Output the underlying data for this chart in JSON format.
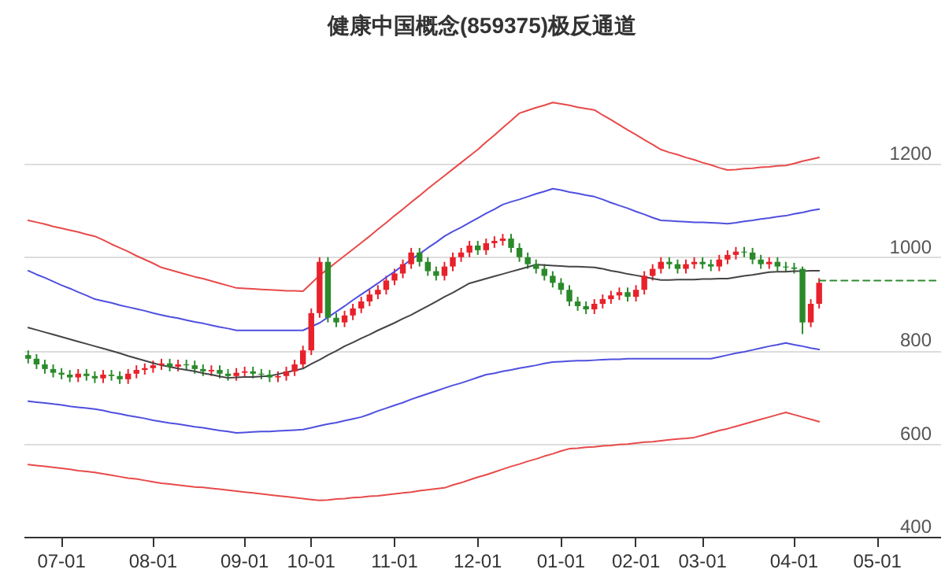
{
  "chart_data": {
    "type": "candlestick",
    "title": "健康中国概念(859375)极反通道",
    "categories": [
      null,
      null,
      null,
      null,
      "07-01",
      null,
      null,
      null,
      null,
      null,
      null,
      null,
      null,
      null,
      null,
      "08-01",
      null,
      null,
      null,
      null,
      null,
      null,
      null,
      null,
      null,
      null,
      "09-01",
      null,
      null,
      null,
      null,
      null,
      null,
      null,
      "10-01",
      null,
      null,
      null,
      null,
      null,
      null,
      null,
      null,
      null,
      "11-01",
      null,
      null,
      null,
      null,
      null,
      null,
      null,
      null,
      null,
      "12-01",
      null,
      null,
      null,
      null,
      null,
      null,
      null,
      null,
      null,
      "01-01",
      null,
      null,
      null,
      null,
      null,
      null,
      null,
      null,
      "02-01",
      null,
      null,
      null,
      null,
      null,
      null,
      null,
      "03-01",
      null,
      null,
      null,
      null,
      null,
      null,
      null,
      null,
      null,
      null,
      "04-01",
      null,
      null,
      null,
      null,
      null,
      null,
      null,
      null,
      null,
      "05-01",
      null,
      null,
      null,
      null,
      null,
      null,
      null
    ],
    "ohlc": [
      [
        790,
        800,
        772,
        782
      ],
      [
        782,
        792,
        760,
        770
      ],
      [
        770,
        780,
        750,
        760
      ],
      [
        760,
        770,
        742,
        752
      ],
      [
        752,
        762,
        738,
        748
      ],
      [
        748,
        758,
        732,
        742
      ],
      [
        742,
        760,
        732,
        750
      ],
      [
        750,
        760,
        735,
        745
      ],
      [
        745,
        755,
        730,
        740
      ],
      [
        740,
        758,
        730,
        748
      ],
      [
        748,
        758,
        735,
        745
      ],
      [
        745,
        755,
        728,
        738
      ],
      [
        738,
        760,
        728,
        750
      ],
      [
        750,
        768,
        740,
        758
      ],
      [
        758,
        772,
        748,
        762
      ],
      [
        762,
        778,
        752,
        768
      ],
      [
        768,
        782,
        758,
        772
      ],
      [
        772,
        782,
        755,
        765
      ],
      [
        765,
        780,
        755,
        770
      ],
      [
        770,
        780,
        758,
        768
      ],
      [
        768,
        778,
        750,
        760
      ],
      [
        760,
        770,
        745,
        755
      ],
      [
        755,
        768,
        745,
        758
      ],
      [
        758,
        768,
        740,
        750
      ],
      [
        750,
        760,
        735,
        745
      ],
      [
        745,
        762,
        735,
        752
      ],
      [
        752,
        765,
        742,
        755
      ],
      [
        755,
        765,
        740,
        750
      ],
      [
        750,
        760,
        738,
        748
      ],
      [
        748,
        758,
        732,
        742
      ],
      [
        742,
        755,
        732,
        745
      ],
      [
        745,
        765,
        735,
        755
      ],
      [
        755,
        780,
        745,
        770
      ],
      [
        770,
        810,
        760,
        800
      ],
      [
        800,
        890,
        790,
        880
      ],
      [
        880,
        1000,
        870,
        990
      ],
      [
        990,
        1000,
        860,
        870
      ],
      [
        870,
        880,
        850,
        860
      ],
      [
        860,
        885,
        850,
        875
      ],
      [
        875,
        900,
        865,
        890
      ],
      [
        890,
        915,
        880,
        905
      ],
      [
        905,
        930,
        895,
        920
      ],
      [
        920,
        940,
        910,
        930
      ],
      [
        930,
        960,
        920,
        950
      ],
      [
        950,
        975,
        940,
        965
      ],
      [
        965,
        995,
        955,
        985
      ],
      [
        985,
        1020,
        975,
        1010
      ],
      [
        1010,
        1020,
        980,
        990
      ],
      [
        990,
        1000,
        960,
        970
      ],
      [
        970,
        980,
        950,
        960
      ],
      [
        960,
        990,
        950,
        980
      ],
      [
        980,
        1010,
        970,
        1000
      ],
      [
        1000,
        1020,
        990,
        1010
      ],
      [
        1010,
        1035,
        1000,
        1025
      ],
      [
        1025,
        1035,
        1005,
        1015
      ],
      [
        1015,
        1040,
        1005,
        1030
      ],
      [
        1030,
        1045,
        1020,
        1035
      ],
      [
        1035,
        1050,
        1025,
        1040
      ],
      [
        1040,
        1050,
        1010,
        1020
      ],
      [
        1020,
        1030,
        990,
        1000
      ],
      [
        1000,
        1010,
        975,
        985
      ],
      [
        985,
        995,
        965,
        975
      ],
      [
        975,
        985,
        950,
        960
      ],
      [
        960,
        970,
        935,
        945
      ],
      [
        945,
        955,
        920,
        930
      ],
      [
        930,
        940,
        895,
        905
      ],
      [
        905,
        915,
        885,
        895
      ],
      [
        895,
        905,
        878,
        888
      ],
      [
        888,
        910,
        878,
        900
      ],
      [
        900,
        920,
        890,
        910
      ],
      [
        910,
        928,
        900,
        918
      ],
      [
        918,
        935,
        908,
        925
      ],
      [
        925,
        935,
        905,
        915
      ],
      [
        915,
        940,
        905,
        930
      ],
      [
        930,
        970,
        920,
        960
      ],
      [
        960,
        985,
        950,
        975
      ],
      [
        975,
        1000,
        965,
        990
      ],
      [
        990,
        1000,
        975,
        985
      ],
      [
        985,
        995,
        965,
        975
      ],
      [
        975,
        995,
        965,
        985
      ],
      [
        985,
        1000,
        975,
        990
      ],
      [
        990,
        1000,
        975,
        985
      ],
      [
        985,
        995,
        970,
        980
      ],
      [
        980,
        1005,
        970,
        995
      ],
      [
        995,
        1015,
        985,
        1005
      ],
      [
        1005,
        1022,
        995,
        1012
      ],
      [
        1012,
        1022,
        1000,
        1010
      ],
      [
        1010,
        1020,
        985,
        995
      ],
      [
        995,
        1005,
        975,
        985
      ],
      [
        985,
        1000,
        975,
        990
      ],
      [
        990,
        1000,
        970,
        980
      ],
      [
        980,
        990,
        968,
        978
      ],
      [
        978,
        988,
        965,
        975
      ],
      [
        975,
        980,
        835,
        860
      ],
      [
        860,
        910,
        850,
        900
      ],
      [
        900,
        955,
        890,
        945
      ],
      null,
      null,
      null,
      null,
      null,
      null,
      null,
      null,
      null,
      null,
      null,
      null,
      null,
      null
    ],
    "colors": [
      "#2a8a2a",
      "#2a8a2a",
      "#2a8a2a",
      "#2a8a2a",
      "#2a8a2a",
      "#2a8a2a",
      "#e8212b",
      "#2a8a2a",
      "#2a8a2a",
      "#e8212b",
      "#2a8a2a",
      "#2a8a2a",
      "#e8212b",
      "#e8212b",
      "#e8212b",
      "#e8212b",
      "#e8212b",
      "#2a8a2a",
      "#e8212b",
      "#2a8a2a",
      "#2a8a2a",
      "#2a8a2a",
      "#e8212b",
      "#2a8a2a",
      "#2a8a2a",
      "#e8212b",
      "#e8212b",
      "#2a8a2a",
      "#2a8a2a",
      "#2a8a2a",
      "#e8212b",
      "#e8212b",
      "#e8212b",
      "#e8212b",
      "#e8212b",
      "#e8212b",
      "#2a8a2a",
      "#2a8a2a",
      "#e8212b",
      "#e8212b",
      "#e8212b",
      "#e8212b",
      "#e8212b",
      "#e8212b",
      "#e8212b",
      "#e8212b",
      "#e8212b",
      "#2a8a2a",
      "#2a8a2a",
      "#2a8a2a",
      "#e8212b",
      "#e8212b",
      "#e8212b",
      "#e8212b",
      "#2a8a2a",
      "#e8212b",
      "#e8212b",
      "#e8212b",
      "#2a8a2a",
      "#2a8a2a",
      "#2a8a2a",
      "#2a8a2a",
      "#2a8a2a",
      "#2a8a2a",
      "#2a8a2a",
      "#2a8a2a",
      "#2a8a2a",
      "#2a8a2a",
      "#e8212b",
      "#e8212b",
      "#e8212b",
      "#e8212b",
      "#2a8a2a",
      "#e8212b",
      "#e8212b",
      "#e8212b",
      "#e8212b",
      "#2a8a2a",
      "#2a8a2a",
      "#e8212b",
      "#e8212b",
      "#2a8a2a",
      "#2a8a2a",
      "#e8212b",
      "#e8212b",
      "#e8212b",
      "#2a8a2a",
      "#2a8a2a",
      "#2a8a2a",
      "#e8212b",
      "#2a8a2a",
      "#2a8a2a",
      "#2a8a2a",
      "#2a8a2a",
      "#e8212b",
      "#e8212b",
      null,
      null,
      null,
      null,
      null,
      null,
      null,
      null,
      null,
      null,
      null,
      null,
      null,
      null
    ],
    "series": [
      {
        "type": "line",
        "color": "#e84a4a",
        "values": [
          1079,
          1075,
          1071,
          1066,
          1062,
          1058,
          1054,
          1049,
          1045,
          1037,
          1028,
          1020,
          1012,
          1003,
          995,
          987,
          978,
          973,
          968,
          963,
          958,
          954,
          949,
          944,
          939,
          934,
          933,
          932,
          931,
          930,
          929,
          928,
          928,
          927,
          944,
          961,
          975,
          989,
          1003,
          1017,
          1031,
          1045,
          1060,
          1074,
          1089,
          1103,
          1118,
          1132,
          1147,
          1161,
          1175,
          1189,
          1203,
          1217,
          1231,
          1247,
          1262,
          1278,
          1293,
          1309,
          1315,
          1321,
          1326,
          1332,
          1329,
          1326,
          1322,
          1319,
          1316,
          1305,
          1295,
          1284,
          1273,
          1263,
          1252,
          1242,
          1231,
          1225,
          1220,
          1214,
          1209,
          1203,
          1198,
          1192,
          1187,
          1188,
          1190,
          1191,
          1193,
          1194,
          1196,
          1197,
          1201,
          1206,
          1210,
          1214,
          null,
          null,
          null,
          null,
          null,
          null,
          null,
          null,
          null,
          null,
          null,
          null,
          null,
          null
        ]
      },
      {
        "type": "line",
        "color": "#4f4fe0",
        "values": [
          971,
          963,
          956,
          948,
          940,
          933,
          925,
          918,
          910,
          906,
          902,
          897,
          893,
          889,
          885,
          880,
          876,
          872,
          869,
          865,
          861,
          858,
          854,
          850,
          847,
          843,
          843,
          843,
          843,
          843,
          843,
          843,
          843,
          843,
          851,
          859,
          871,
          883,
          895,
          908,
          920,
          932,
          944,
          957,
          969,
          982,
          995,
          1007,
          1020,
          1032,
          1045,
          1055,
          1064,
          1074,
          1084,
          1094,
          1103,
          1113,
          1119,
          1124,
          1130,
          1136,
          1141,
          1147,
          1144,
          1140,
          1137,
          1133,
          1130,
          1124,
          1117,
          1111,
          1105,
          1098,
          1092,
          1085,
          1079,
          1078,
          1077,
          1076,
          1075,
          1075,
          1074,
          1073,
          1072,
          1074,
          1077,
          1079,
          1082,
          1084,
          1087,
          1089,
          1093,
          1096,
          1100,
          1103,
          null,
          null,
          null,
          null,
          null,
          null,
          null,
          null,
          null,
          null,
          null,
          null,
          null,
          null
        ]
      },
      {
        "type": "line",
        "color": "#444444",
        "values": [
          849,
          844,
          839,
          834,
          829,
          824,
          819,
          814,
          809,
          804,
          799,
          794,
          788,
          783,
          778,
          773,
          768,
          765,
          761,
          758,
          755,
          751,
          748,
          744,
          741,
          742,
          743,
          743,
          744,
          745,
          749,
          753,
          757,
          761,
          771,
          780,
          790,
          799,
          809,
          817,
          826,
          834,
          843,
          851,
          859,
          868,
          876,
          886,
          895,
          905,
          915,
          924,
          934,
          944,
          949,
          954,
          959,
          964,
          969,
          974,
          979,
          984,
          983,
          982,
          981,
          980,
          980,
          979,
          978,
          975,
          971,
          968,
          964,
          961,
          958,
          954,
          951,
          951,
          952,
          952,
          952,
          953,
          953,
          954,
          954,
          957,
          960,
          962,
          965,
          968,
          969,
          969,
          970,
          970,
          971,
          971,
          null,
          null,
          null,
          null,
          null,
          null,
          null,
          null,
          null,
          null,
          null,
          null,
          null,
          null
        ]
      },
      {
        "type": "line",
        "color": "#4f4fe0",
        "values": [
          691,
          689,
          687,
          685,
          683,
          680,
          678,
          676,
          674,
          671,
          667,
          664,
          660,
          657,
          654,
          650,
          647,
          644,
          642,
          639,
          636,
          634,
          631,
          628,
          626,
          623,
          624,
          625,
          626,
          626,
          627,
          628,
          629,
          630,
          634,
          638,
          642,
          645,
          649,
          653,
          657,
          663,
          670,
          676,
          682,
          688,
          695,
          701,
          707,
          713,
          719,
          725,
          730,
          736,
          742,
          748,
          751,
          755,
          758,
          762,
          765,
          768,
          772,
          775,
          776,
          777,
          778,
          778,
          779,
          780,
          781,
          781,
          782,
          782,
          782,
          782,
          782,
          782,
          782,
          782,
          782,
          782,
          782,
          786,
          790,
          794,
          797,
          801,
          805,
          809,
          812,
          816,
          812,
          809,
          805,
          802,
          null,
          null,
          null,
          null,
          null,
          null,
          null,
          null,
          null,
          null,
          null,
          null,
          null,
          null
        ]
      },
      {
        "type": "line",
        "color": "#e84a4a",
        "values": [
          555,
          553,
          551,
          549,
          547,
          545,
          542,
          540,
          538,
          535,
          532,
          529,
          526,
          524,
          521,
          518,
          515,
          513,
          511,
          509,
          507,
          506,
          504,
          502,
          500,
          498,
          496,
          494,
          492,
          490,
          488,
          486,
          484,
          482,
          480,
          478,
          479,
          481,
          482,
          484,
          485,
          487,
          488,
          490,
          492,
          494,
          496,
          499,
          501,
          503,
          505,
          511,
          516,
          522,
          528,
          533,
          539,
          545,
          551,
          556,
          562,
          567,
          573,
          578,
          584,
          589,
          590,
          592,
          593,
          595,
          596,
          598,
          599,
          601,
          603,
          604,
          606,
          608,
          610,
          611,
          613,
          618,
          623,
          628,
          632,
          637,
          642,
          647,
          652,
          657,
          662,
          667,
          662,
          657,
          652,
          647,
          null,
          null,
          null,
          null,
          null,
          null,
          null,
          null,
          null,
          null,
          null,
          null,
          null,
          null
        ]
      },
      {
        "type": "line",
        "color": "#2e8b2e",
        "line_style": "dashed",
        "values": [
          null,
          null,
          null,
          null,
          null,
          null,
          null,
          null,
          null,
          null,
          null,
          null,
          null,
          null,
          null,
          null,
          null,
          null,
          null,
          null,
          null,
          null,
          null,
          null,
          null,
          null,
          null,
          null,
          null,
          null,
          null,
          null,
          null,
          null,
          null,
          null,
          null,
          null,
          null,
          null,
          null,
          null,
          null,
          null,
          null,
          null,
          null,
          null,
          null,
          null,
          null,
          null,
          null,
          null,
          null,
          null,
          null,
          null,
          null,
          null,
          null,
          null,
          null,
          null,
          null,
          null,
          null,
          null,
          null,
          null,
          null,
          null,
          null,
          null,
          null,
          null,
          null,
          null,
          null,
          null,
          null,
          null,
          null,
          null,
          null,
          null,
          null,
          null,
          null,
          null,
          null,
          null,
          null,
          null,
          null,
          950,
          950,
          950,
          950,
          950,
          950,
          950,
          950,
          950,
          950,
          950,
          950,
          950,
          950,
          950
        ]
      }
    ],
    "ylim": [
      400,
      1552
    ],
    "yticks": [
      400,
      600,
      800,
      1000,
      1200
    ],
    "grid": "y"
  }
}
